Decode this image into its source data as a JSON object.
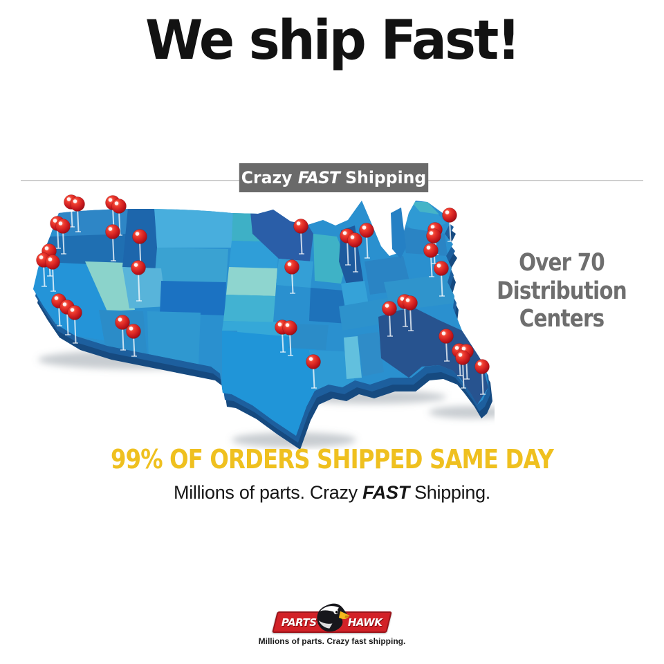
{
  "title": "We ship Fast!",
  "banner": {
    "word1": "Crazy ",
    "word2": "FAST",
    "word3": " Shipping",
    "bg": "#6a6a6a",
    "fg": "#ffffff"
  },
  "callout": {
    "line1": "Over 70",
    "line2": "Distribution",
    "line3": "Centers",
    "color": "#6e6e6e"
  },
  "headline": {
    "text": "99% OF ORDERS SHIPPED SAME DAY",
    "color": "#efc01f"
  },
  "subheadline": {
    "prefix": "Millions of parts. Crazy ",
    "emphasis": "FAST",
    "suffix": " Shipping."
  },
  "logo": {
    "left_word": "PARTS",
    "right_word": "HAWK",
    "tagline": "Millions of parts. Crazy fast shipping.",
    "banner_red": "#d22127",
    "beak_yellow": "#f5b81c"
  },
  "map": {
    "description": "3D United States map with red location pins marking distribution centers",
    "pin_color": "#d81f1f",
    "base_color": "#2a90cf",
    "extrude_color": "#164a80",
    "palette": [
      "#2e86c6",
      "#1f6fb2",
      "#2494d8",
      "#8bd3cb",
      "#1d66ac",
      "#48aedd",
      "#3aa2d2",
      "#58b4da",
      "#1b72c2",
      "#2b8cc8",
      "#2f98d0",
      "#3eb0c6",
      "#2f9ed8",
      "#8ed5cf",
      "#42b2d2",
      "#35a8d8",
      "#2095d8",
      "#2a5ea8",
      "#349fd6",
      "#1e72ba",
      "#2e9ad4",
      "#3fb2c6",
      "#1d5a9e",
      "#35a2d8",
      "#2a84c4",
      "#62c0de",
      "#27538f",
      "#2f94cc",
      "#2d92cc",
      "#2f9ad4",
      "#45b4c8"
    ],
    "pins": [
      [
        68,
        14,
        30
      ],
      [
        77,
        17,
        34
      ],
      [
        128,
        15,
        32
      ],
      [
        137,
        20,
        36
      ],
      [
        48,
        45,
        30
      ],
      [
        56,
        49,
        34
      ],
      [
        128,
        57,
        36
      ],
      [
        167,
        64,
        40
      ],
      [
        36,
        85,
        30
      ],
      [
        28,
        98,
        32
      ],
      [
        41,
        101,
        36
      ],
      [
        165,
        109,
        42
      ],
      [
        50,
        157,
        30
      ],
      [
        62,
        166,
        34
      ],
      [
        73,
        174,
        38
      ],
      [
        142,
        188,
        34
      ],
      [
        158,
        201,
        30
      ],
      [
        400,
        49,
        34
      ],
      [
        387,
        108,
        32
      ],
      [
        373,
        195,
        30
      ],
      [
        384,
        196,
        34
      ],
      [
        418,
        245,
        32
      ],
      [
        528,
        168,
        34
      ],
      [
        550,
        158,
        30
      ],
      [
        558,
        160,
        34
      ],
      [
        467,
        63,
        36
      ],
      [
        478,
        69,
        40
      ],
      [
        495,
        55,
        34
      ],
      [
        615,
        33,
        32
      ],
      [
        594,
        54,
        30
      ],
      [
        592,
        63,
        34
      ],
      [
        588,
        84,
        32
      ],
      [
        603,
        110,
        34
      ],
      [
        610,
        208,
        30
      ],
      [
        629,
        229,
        30
      ],
      [
        639,
        230,
        34
      ],
      [
        634,
        239,
        38
      ],
      [
        662,
        252,
        34
      ]
    ]
  }
}
